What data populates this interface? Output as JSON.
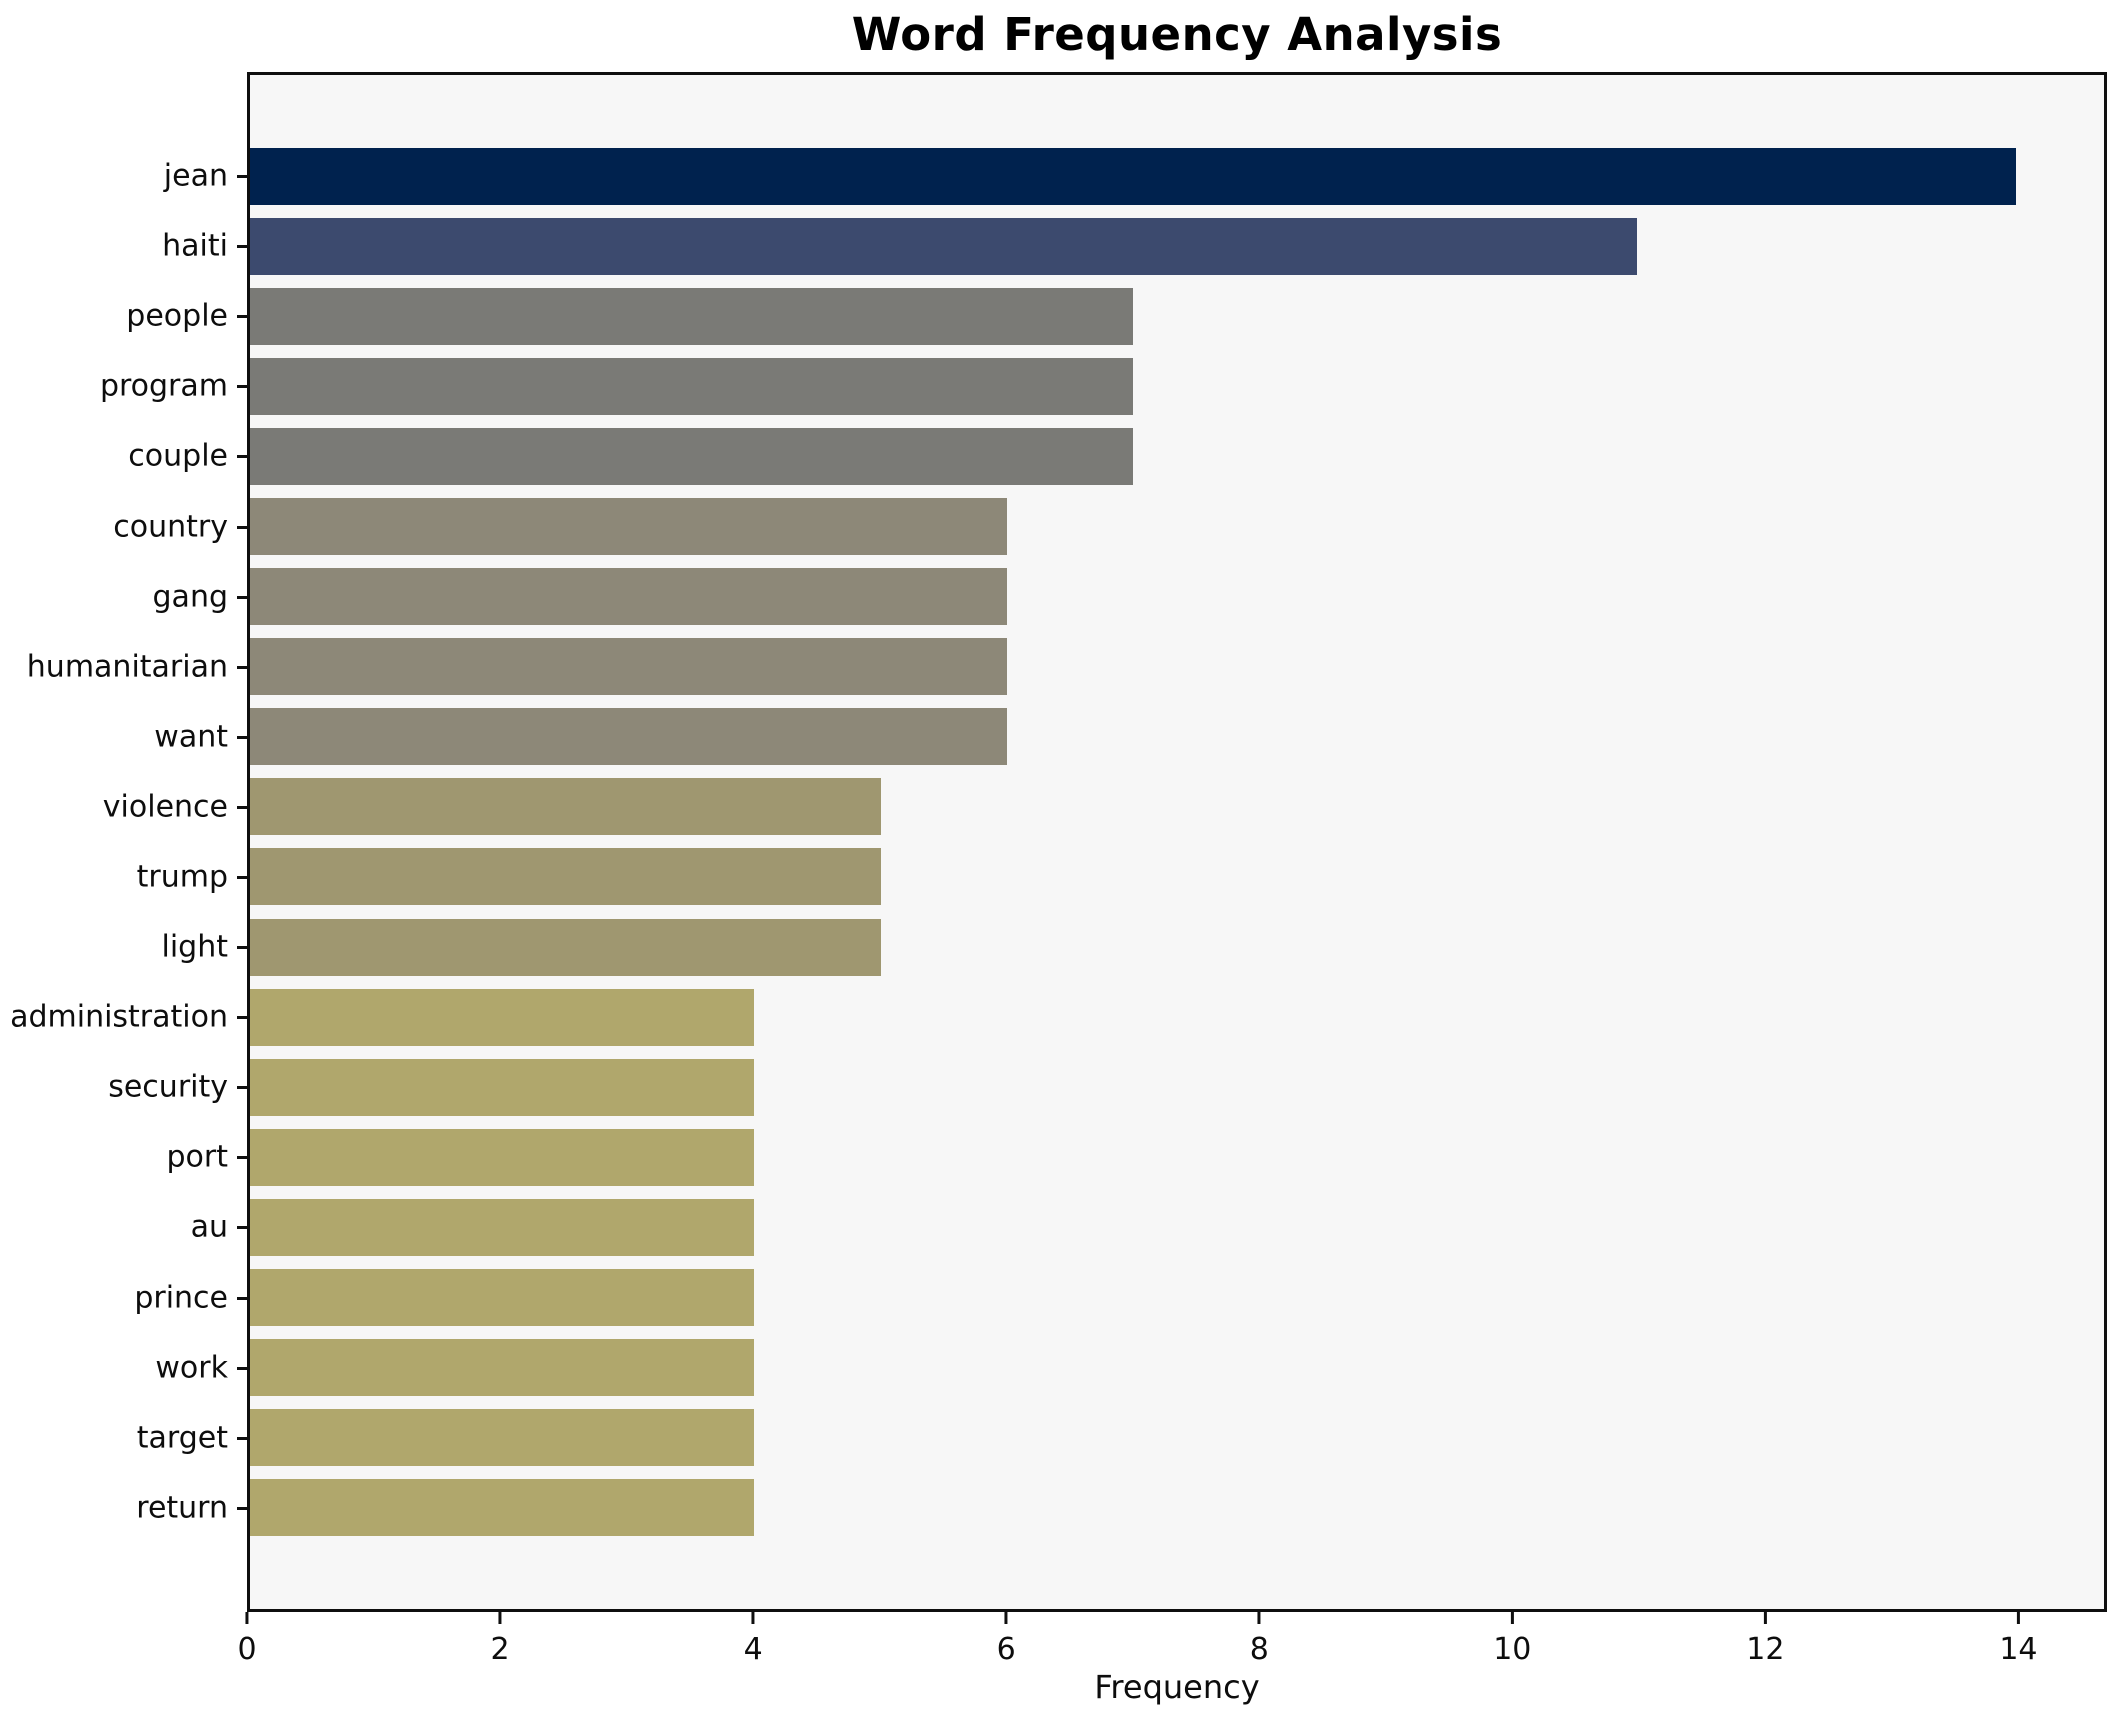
{
  "title": "Word Frequency Analysis",
  "chart_data": {
    "type": "bar",
    "orientation": "horizontal",
    "title": "Word Frequency Analysis",
    "xlabel": "Frequency",
    "ylabel": "",
    "categories": [
      "jean",
      "haiti",
      "people",
      "program",
      "couple",
      "country",
      "gang",
      "humanitarian",
      "want",
      "violence",
      "trump",
      "light",
      "administration",
      "security",
      "port",
      "au",
      "prince",
      "work",
      "target",
      "return"
    ],
    "values": [
      14,
      11,
      7,
      7,
      7,
      6,
      6,
      6,
      6,
      5,
      5,
      5,
      4,
      4,
      4,
      4,
      4,
      4,
      4,
      4
    ],
    "bar_colors": [
      "#00224e",
      "#3c4a6e",
      "#7a7a76",
      "#7a7a76",
      "#7a7a76",
      "#8d8878",
      "#8d8878",
      "#8d8878",
      "#8d8878",
      "#9f9770",
      "#9f9770",
      "#9f9770",
      "#b0a76c",
      "#b0a76c",
      "#b0a76c",
      "#b0a76c",
      "#b0a76c",
      "#b0a76c",
      "#b0a76c",
      "#b0a76c"
    ],
    "xlim": [
      0,
      14.7
    ],
    "xticks": [
      0,
      2,
      4,
      6,
      8,
      10,
      12,
      14
    ],
    "grid": false,
    "legend": false,
    "plot_bg": "#f7f7f7",
    "figure_bg": "#ffffff",
    "spine_color": "#0f0f0f"
  }
}
